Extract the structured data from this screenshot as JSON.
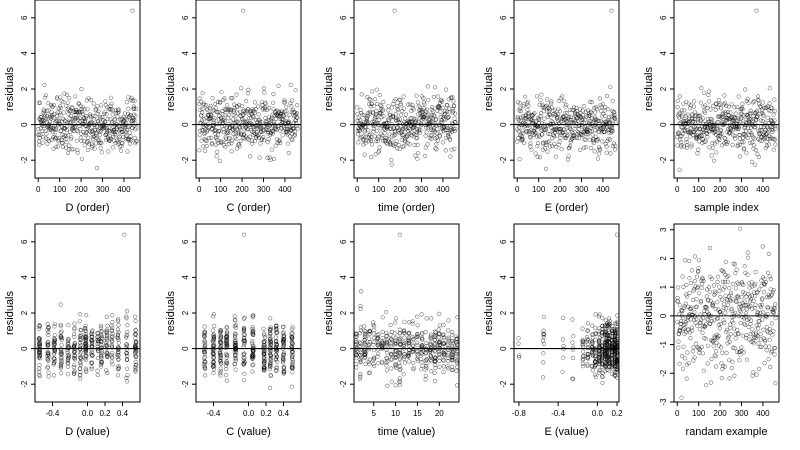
{
  "figure": {
    "ylabel": "residuals"
  },
  "chart_data": [
    {
      "type": "scatter",
      "xlabel": "D (order)",
      "ylabel": "residuals",
      "xlim": [
        -15,
        475
      ],
      "ylim": [
        -3,
        7
      ],
      "xticks": [
        0,
        100,
        200,
        300,
        400
      ],
      "xtick_labels": [
        "0",
        "100",
        "200",
        "300",
        "400"
      ],
      "yticks": [
        -2,
        0,
        2,
        4,
        6
      ],
      "ytick_labels": [
        "-2",
        "0",
        "2",
        "4",
        "6"
      ],
      "hline": 0,
      "n_points": 460,
      "x_kind": "index",
      "xmax": 460,
      "outlier": [
        440,
        6.4
      ],
      "sd": 0.75,
      "spread": 0
    },
    {
      "type": "scatter",
      "xlabel": "C (order)",
      "ylabel": "residuals",
      "xlim": [
        -15,
        475
      ],
      "ylim": [
        -3,
        7
      ],
      "xticks": [
        0,
        100,
        200,
        300,
        400
      ],
      "xtick_labels": [
        "0",
        "100",
        "200",
        "300",
        "400"
      ],
      "yticks": [
        -2,
        0,
        2,
        4,
        6
      ],
      "ytick_labels": [
        "-2",
        "0",
        "2",
        "4",
        "6"
      ],
      "hline": 0,
      "n_points": 460,
      "x_kind": "index",
      "xmax": 460,
      "outlier": [
        205,
        6.4
      ],
      "sd": 0.75,
      "spread": 0
    },
    {
      "type": "scatter",
      "xlabel": "time (order)",
      "ylabel": "residuals",
      "xlim": [
        -15,
        475
      ],
      "ylim": [
        -3,
        7
      ],
      "xticks": [
        0,
        100,
        200,
        300,
        400
      ],
      "xtick_labels": [
        "0",
        "100",
        "200",
        "300",
        "400"
      ],
      "yticks": [
        -2,
        0,
        2,
        4,
        6
      ],
      "ytick_labels": [
        "-2",
        "0",
        "2",
        "4",
        "6"
      ],
      "hline": 0,
      "n_points": 460,
      "x_kind": "index",
      "xmax": 460,
      "outlier": [
        175,
        6.4
      ],
      "sd": 0.75,
      "spread": 0
    },
    {
      "type": "scatter",
      "xlabel": "E (order)",
      "ylabel": "residuals",
      "xlim": [
        -15,
        475
      ],
      "ylim": [
        -3,
        7
      ],
      "xticks": [
        0,
        100,
        200,
        300,
        400
      ],
      "xtick_labels": [
        "0",
        "100",
        "200",
        "300",
        "400"
      ],
      "yticks": [
        -2,
        0,
        2,
        4,
        6
      ],
      "ytick_labels": [
        "-2",
        "0",
        "2",
        "4",
        "6"
      ],
      "hline": 0,
      "n_points": 460,
      "x_kind": "index",
      "xmax": 460,
      "outlier": [
        440,
        6.4
      ],
      "sd": 0.75,
      "spread": 0
    },
    {
      "type": "scatter",
      "xlabel": "sample index",
      "ylabel": "residuals",
      "xlim": [
        -15,
        475
      ],
      "ylim": [
        -3,
        7
      ],
      "xticks": [
        0,
        100,
        200,
        300,
        400
      ],
      "xtick_labels": [
        "0",
        "100",
        "200",
        "300",
        "400"
      ],
      "yticks": [
        -2,
        0,
        2,
        4,
        6
      ],
      "ytick_labels": [
        "-2",
        "0",
        "2",
        "4",
        "6"
      ],
      "hline": 0,
      "n_points": 460,
      "x_kind": "index",
      "xmax": 460,
      "outlier": [
        370,
        6.4
      ],
      "sd": 0.75,
      "spread": 0
    },
    {
      "type": "scatter",
      "xlabel": "D (value)",
      "ylabel": "residuals",
      "xlim": [
        -0.6,
        0.6
      ],
      "ylim": [
        -3,
        7
      ],
      "xticks": [
        -0.4,
        0.0,
        0.2,
        0.4
      ],
      "xtick_labels": [
        "-0.4",
        "0.0",
        "0.2",
        "0.4"
      ],
      "yticks": [
        -2,
        0,
        2,
        4,
        6
      ],
      "ytick_labels": [
        "-2",
        "0",
        "2",
        "4",
        "6"
      ],
      "hline": 0,
      "n_points": 460,
      "x_kind": "levels",
      "x_levels": [
        -0.55,
        -0.45,
        -0.38,
        -0.3,
        -0.22,
        -0.15,
        -0.08,
        -0.02,
        0.05,
        0.12,
        0.16,
        0.22,
        0.28,
        0.35,
        0.45,
        0.55
      ],
      "outlier": [
        0.42,
        6.4
      ],
      "sd": 0.75,
      "spread": 0.008
    },
    {
      "type": "scatter",
      "xlabel": "C (value)",
      "ylabel": "residuals",
      "xlim": [
        -0.6,
        0.6
      ],
      "ylim": [
        -3,
        7
      ],
      "xticks": [
        -0.4,
        0.0,
        0.2,
        0.4
      ],
      "xtick_labels": [
        "-0.4",
        "0.0",
        "0.2",
        "0.4"
      ],
      "yticks": [
        -2,
        0,
        2,
        4,
        6
      ],
      "ytick_labels": [
        "-2",
        "0",
        "2",
        "4",
        "6"
      ],
      "hline": 0,
      "n_points": 460,
      "x_kind": "levels",
      "x_levels": [
        -0.5,
        -0.4,
        -0.32,
        -0.25,
        -0.15,
        -0.05,
        0.05,
        0.18,
        0.25,
        0.32,
        0.4,
        0.5
      ],
      "outlier": [
        -0.05,
        6.4
      ],
      "sd": 0.75,
      "spread": 0.008
    },
    {
      "type": "scatter",
      "xlabel": "time (value)",
      "ylabel": "residuals",
      "xlim": [
        0.5,
        24.5
      ],
      "ylim": [
        -3,
        7
      ],
      "xticks": [
        5,
        10,
        15,
        20
      ],
      "xtick_labels": [
        "5",
        "10",
        "15",
        "20"
      ],
      "yticks": [
        -2,
        0,
        2,
        4,
        6
      ],
      "ytick_labels": [
        "-2",
        "0",
        "2",
        "4",
        "6"
      ],
      "hline": 0,
      "n_points": 460,
      "x_kind": "levels",
      "x_levels": [
        1,
        2,
        3,
        4,
        5,
        6,
        7,
        8,
        9,
        10,
        11,
        12,
        13,
        14,
        15,
        16,
        17,
        18,
        19,
        20,
        21,
        22,
        23,
        24
      ],
      "outlier": [
        11,
        6.4
      ],
      "sd": 0.75,
      "spread": 0.15
    },
    {
      "type": "scatter",
      "xlabel": "E (value)",
      "ylabel": "residuals",
      "xlim": [
        -0.85,
        0.22
      ],
      "ylim": [
        -3,
        7
      ],
      "xticks": [
        -0.8,
        -0.4,
        0.0,
        0.2
      ],
      "xtick_labels": [
        "-0.8",
        "-0.4",
        "0.0",
        "0.2"
      ],
      "yticks": [
        -2,
        0,
        2,
        4,
        6
      ],
      "ytick_labels": [
        "-2",
        "0",
        "2",
        "4",
        "6"
      ],
      "hline": 0,
      "n_points": 460,
      "x_kind": "levels",
      "x_levels": [
        -0.8,
        -0.55,
        -0.35,
        -0.25,
        -0.15,
        -0.1,
        -0.05,
        -0.02,
        0.02,
        0.05,
        0.08,
        0.1,
        0.12,
        0.15,
        0.18,
        0.2
      ],
      "level_weights": [
        1,
        1,
        1,
        1,
        2,
        2,
        3,
        3,
        4,
        4,
        5,
        5,
        6,
        7,
        7,
        8
      ],
      "outlier": [
        0.2,
        6.4
      ],
      "sd": 0.75,
      "spread": 0.006
    },
    {
      "type": "scatter",
      "xlabel": "randam example",
      "ylabel": "residuals",
      "xlim": [
        -15,
        475
      ],
      "ylim": [
        -3,
        3.2
      ],
      "xticks": [
        0,
        100,
        200,
        300,
        400
      ],
      "xtick_labels": [
        "0",
        "100",
        "200",
        "300",
        "400"
      ],
      "yticks": [
        -3,
        -2,
        -1,
        0,
        1,
        2,
        3
      ],
      "ytick_labels": [
        "-3",
        "-2",
        "-1",
        "0",
        "1",
        "2",
        "3"
      ],
      "hline": 0,
      "n_points": 460,
      "x_kind": "index",
      "xmax": 460,
      "outlier": null,
      "sd": 1.0,
      "spread": 0
    }
  ]
}
